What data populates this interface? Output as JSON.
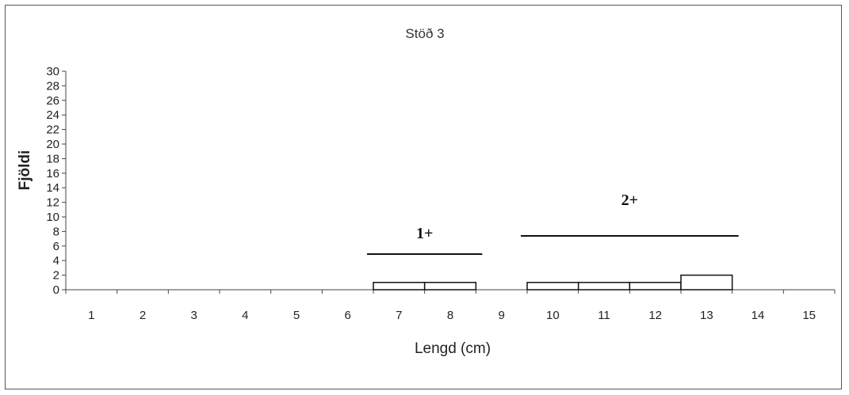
{
  "chart_data": {
    "type": "bar",
    "title": "Stöð 3",
    "xlabel": "Lengd (cm)",
    "ylabel": "Fjöldi",
    "categories": [
      "1",
      "2",
      "3",
      "4",
      "5",
      "6",
      "7",
      "8",
      "9",
      "10",
      "11",
      "12",
      "13",
      "14",
      "15"
    ],
    "values": [
      0,
      0,
      0,
      0,
      0,
      0,
      1,
      1,
      0,
      1,
      1,
      1,
      2,
      0,
      0
    ],
    "ylim": [
      0,
      30
    ],
    "yticks": [
      "0",
      "2",
      "4",
      "6",
      "8",
      "10",
      "12",
      "14",
      "16",
      "18",
      "20",
      "22",
      "24",
      "26",
      "28",
      "30"
    ],
    "grid": false,
    "legend": "none",
    "annotations": [
      {
        "text": "1+",
        "from_category": "7",
        "to_category": "8"
      },
      {
        "text": "2+",
        "from_category": "10",
        "to_category": "13"
      }
    ],
    "colors": {
      "bar_fill": "#ffffff",
      "bar_stroke": "#111111",
      "axis": "#444444"
    }
  }
}
